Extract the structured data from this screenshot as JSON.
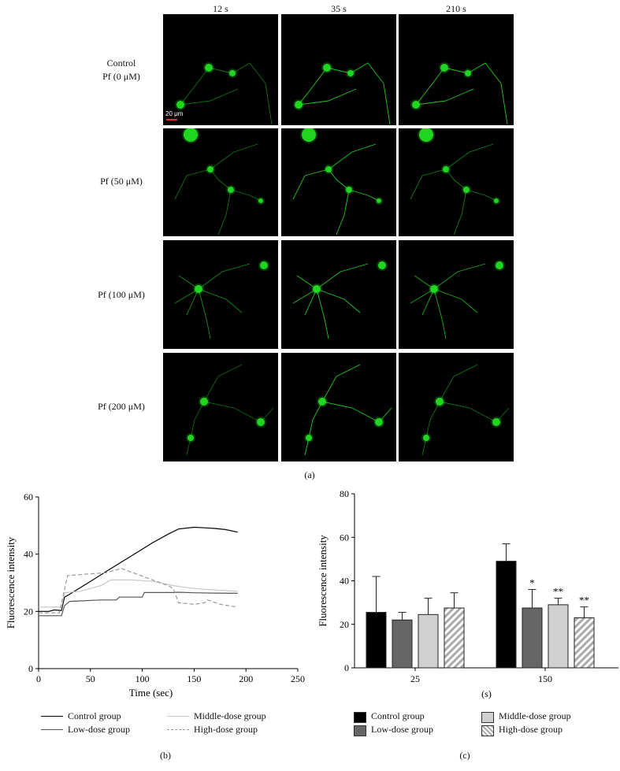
{
  "panel_a": {
    "column_titles": [
      "12 s",
      "35 s",
      "210 s"
    ],
    "rows": [
      {
        "label_line1": "Control",
        "label_line2": "Pf (0 μM)"
      },
      {
        "label_line1": "",
        "label_line2": "Pf (50 μM)"
      },
      {
        "label_line1": "",
        "label_line2": "Pf (100 μM)"
      },
      {
        "label_line1": "",
        "label_line2": "Pf (200 μM)"
      }
    ],
    "scale_bar": "20 μm",
    "panel_label": "(a)",
    "fluorescence_color": "#22dd22",
    "scale_bar_color": "#e03030"
  },
  "panel_b": {
    "panel_label": "(b)",
    "chart_data": {
      "type": "line",
      "xlabel": "Time (sec)",
      "ylabel": "Fluorescence intensity",
      "xlim": [
        0,
        250
      ],
      "ylim": [
        0,
        60
      ],
      "xticks": [
        "0",
        "50",
        "100",
        "150",
        "200",
        "250"
      ],
      "yticks": [
        "0",
        "20",
        "40",
        "60"
      ],
      "grid": false,
      "legend_position": "bottom",
      "series": [
        {
          "name": "Control group",
          "color": "#000000",
          "dash": "",
          "points": [
            [
              0,
              20
            ],
            [
              10,
              20
            ],
            [
              15,
              20.5
            ],
            [
              22,
              20.3
            ],
            [
              25,
              25
            ],
            [
              30,
              26
            ],
            [
              50,
              30.5
            ],
            [
              70,
              35
            ],
            [
              90,
              39.5
            ],
            [
              110,
              44
            ],
            [
              125,
              47
            ],
            [
              135,
              48.8
            ],
            [
              150,
              49.4
            ],
            [
              160,
              49.2
            ],
            [
              170,
              49
            ],
            [
              180,
              48.6
            ],
            [
              192,
              47.7
            ]
          ]
        },
        {
          "name": "Low-dose group",
          "color": "#555555",
          "dash": "",
          "points": [
            [
              0,
              18.5
            ],
            [
              22,
              18.5
            ],
            [
              25,
              22
            ],
            [
              30,
              23.5
            ],
            [
              60,
              24
            ],
            [
              75,
              24
            ],
            [
              78,
              25
            ],
            [
              100,
              25
            ],
            [
              102,
              26.6
            ],
            [
              130,
              26.6
            ],
            [
              135,
              26.7
            ],
            [
              150,
              26.5
            ],
            [
              170,
              26.4
            ],
            [
              192,
              26.3
            ]
          ]
        },
        {
          "name": "Middle-dose group",
          "color": "#c8c8c8",
          "dash": "",
          "points": [
            [
              0,
              21.5
            ],
            [
              22,
              21.5
            ],
            [
              25,
              26.5
            ],
            [
              40,
              27
            ],
            [
              60,
              29
            ],
            [
              70,
              31
            ],
            [
              90,
              31
            ],
            [
              110,
              30.5
            ],
            [
              130,
              29
            ],
            [
              150,
              28
            ],
            [
              170,
              27.5
            ],
            [
              192,
              27
            ]
          ]
        },
        {
          "name": "High-dose group",
          "color": "#999999",
          "dash": "5,3",
          "points": [
            [
              0,
              19.5
            ],
            [
              20,
              19.5
            ],
            [
              28,
              32.5
            ],
            [
              45,
              33
            ],
            [
              65,
              33.5
            ],
            [
              80,
              35
            ],
            [
              95,
              33
            ],
            [
              110,
              31
            ],
            [
              125,
              29
            ],
            [
              130,
              28
            ],
            [
              135,
              23
            ],
            [
              150,
              22.5
            ],
            [
              160,
              23
            ],
            [
              163,
              24
            ],
            [
              175,
              22.5
            ],
            [
              192,
              21.5
            ]
          ]
        }
      ]
    }
  },
  "panel_c": {
    "panel_label": "(c)",
    "chart_data": {
      "type": "bar",
      "xlabel": "(s)",
      "ylabel": "Fluorescence intensity",
      "ylim": [
        0,
        80
      ],
      "yticks": [
        "0",
        "20",
        "40",
        "60",
        "80"
      ],
      "categories": [
        "25",
        "150"
      ],
      "legend_position": "bottom",
      "series": [
        {
          "name": "Control group",
          "fill": "#000000",
          "pattern": "solid",
          "values": [
            25.5,
            49
          ],
          "errors": [
            16.5,
            8
          ],
          "significance": [
            "",
            ""
          ]
        },
        {
          "name": "Low-dose group",
          "fill": "#666666",
          "pattern": "solid",
          "values": [
            22,
            27.5
          ],
          "errors": [
            3.5,
            8.5
          ],
          "significance": [
            "",
            "*"
          ]
        },
        {
          "name": "Middle-dose group",
          "fill": "#d0d0d0",
          "pattern": "solid",
          "values": [
            24.5,
            29
          ],
          "errors": [
            7.5,
            3
          ],
          "significance": [
            "",
            "**"
          ]
        },
        {
          "name": "High-dose group",
          "fill": "#b8b8b8",
          "pattern": "hatch",
          "values": [
            27.5,
            23
          ],
          "errors": [
            7,
            5
          ],
          "significance": [
            "",
            "**"
          ]
        }
      ]
    }
  }
}
